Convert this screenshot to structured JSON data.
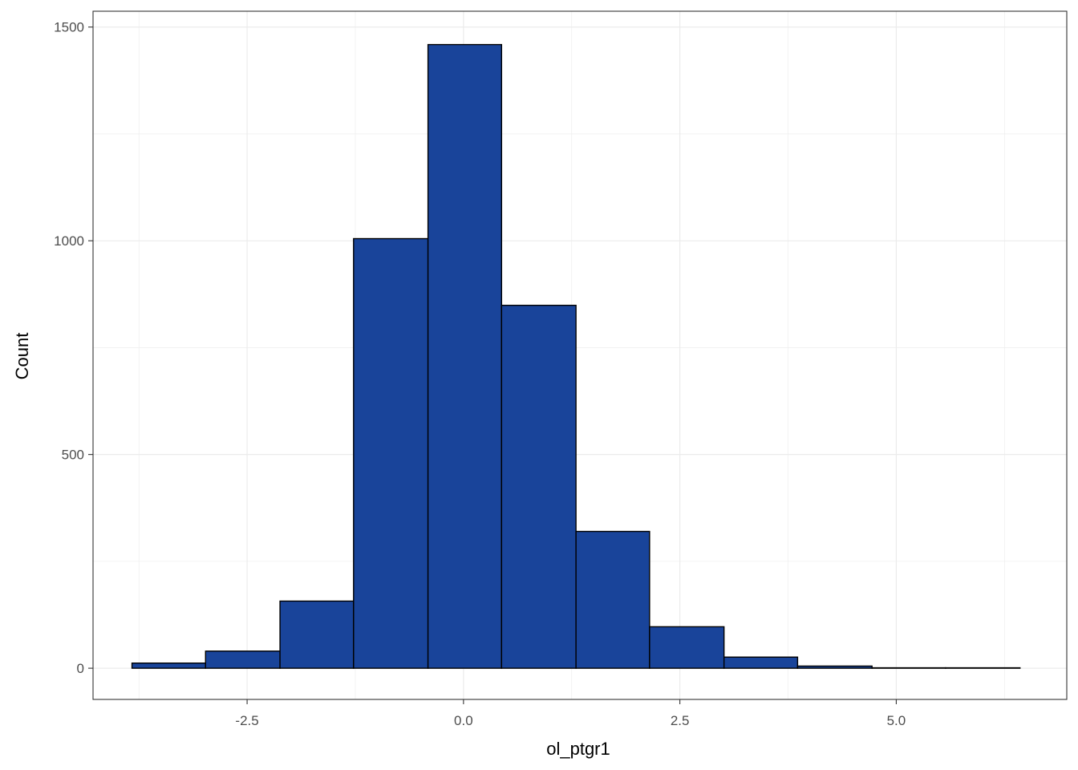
{
  "chart_data": {
    "type": "bar",
    "subtype": "histogram",
    "xlabel": "ol_ptgr1",
    "ylabel": "Count",
    "xlim": [
      -4.28,
      6.97
    ],
    "ylim": [
      -73,
      1537
    ],
    "x_ticks": [
      -2.5,
      0.0,
      2.5,
      5.0
    ],
    "x_tick_labels": [
      "-2.5",
      "0.0",
      "2.5",
      "5.0"
    ],
    "y_ticks": [
      0,
      500,
      1000,
      1500
    ],
    "y_tick_labels": [
      "0",
      "500",
      "1000",
      "1500"
    ],
    "grid": true,
    "legend": "none",
    "bins": [
      {
        "x0": -3.83,
        "x1": -2.98,
        "count": 12
      },
      {
        "x0": -2.98,
        "x1": -2.12,
        "count": 40
      },
      {
        "x0": -2.12,
        "x1": -1.27,
        "count": 157
      },
      {
        "x0": -1.27,
        "x1": -0.41,
        "count": 1005
      },
      {
        "x0": -0.41,
        "x1": 0.44,
        "count": 1459
      },
      {
        "x0": 0.44,
        "x1": 1.3,
        "count": 849
      },
      {
        "x0": 1.3,
        "x1": 2.15,
        "count": 320
      },
      {
        "x0": 2.15,
        "x1": 3.01,
        "count": 97
      },
      {
        "x0": 3.01,
        "x1": 3.86,
        "count": 26
      },
      {
        "x0": 3.86,
        "x1": 4.72,
        "count": 5
      },
      {
        "x0": 4.72,
        "x1": 5.57,
        "count": 1
      },
      {
        "x0": 5.57,
        "x1": 6.43,
        "count": 1
      }
    ],
    "colors": {
      "fill": "#19449A",
      "outline": "#000000",
      "grid": "#ebebeb",
      "panel_border": "#333333"
    }
  }
}
